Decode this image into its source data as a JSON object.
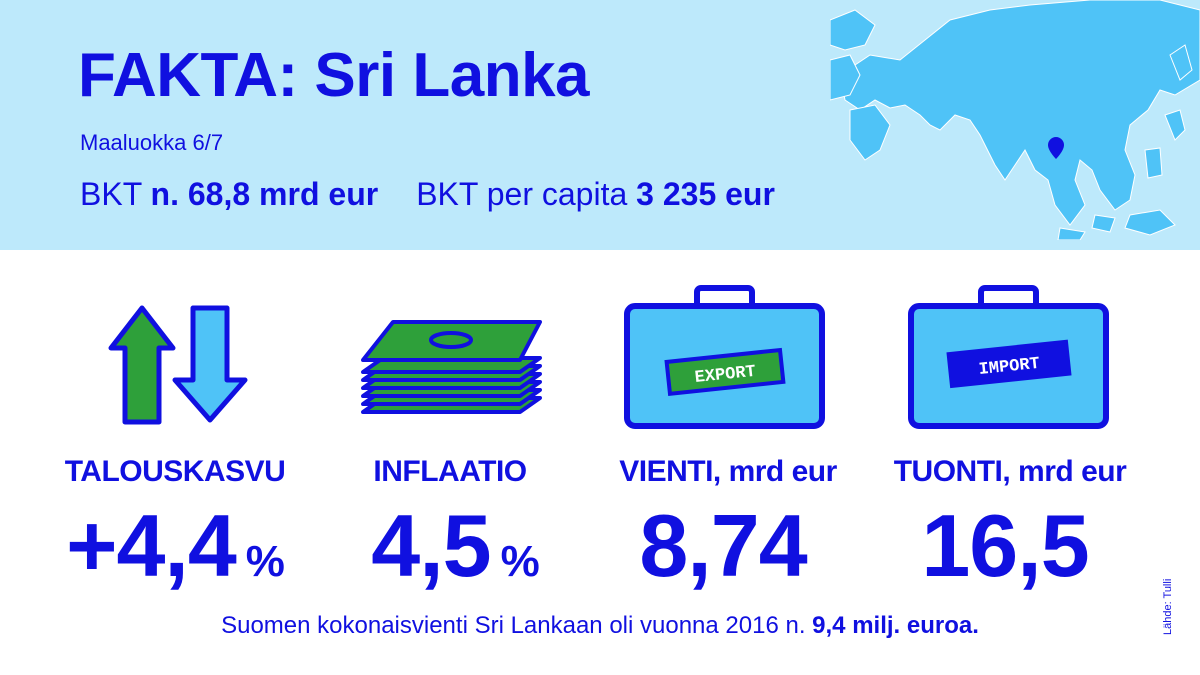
{
  "header": {
    "title": "FAKTA: Sri Lanka",
    "subtitle": "Maaluokka 6/7",
    "gdp_label": "BKT",
    "gdp_value": "n. 68,8 mrd eur",
    "gdp_pc_label": "BKT per capita",
    "gdp_pc_value": "3 235 eur"
  },
  "stats": [
    {
      "label": "TALOUSKASVU",
      "value": "+4,4",
      "unit": "%",
      "icon": "growth-arrows-icon"
    },
    {
      "label": "INFLAATIO",
      "value": "4,5",
      "unit": "%",
      "icon": "money-stack-icon"
    },
    {
      "label": "VIENTI, mrd eur",
      "value": "8,74",
      "unit": "",
      "icon": "export-suitcase-icon",
      "tag": "EXPORT"
    },
    {
      "label": "TUONTI, mrd eur",
      "value": "16,5",
      "unit": "",
      "icon": "import-suitcase-icon",
      "tag": "IMPORT"
    }
  ],
  "footer": {
    "text": "Suomen kokonaisvienti Sri Lankaan oli vuonna 2016 n.",
    "value": "9,4 milj. euroa."
  },
  "source": "Lähde: Tulli",
  "colors": {
    "text": "#1010e0",
    "header_bg": "#bde9fb",
    "map_land": "#4fc3f7",
    "marker": "#1010e0",
    "icon_blue": "#4fc3f7",
    "icon_green": "#2ea03a"
  }
}
